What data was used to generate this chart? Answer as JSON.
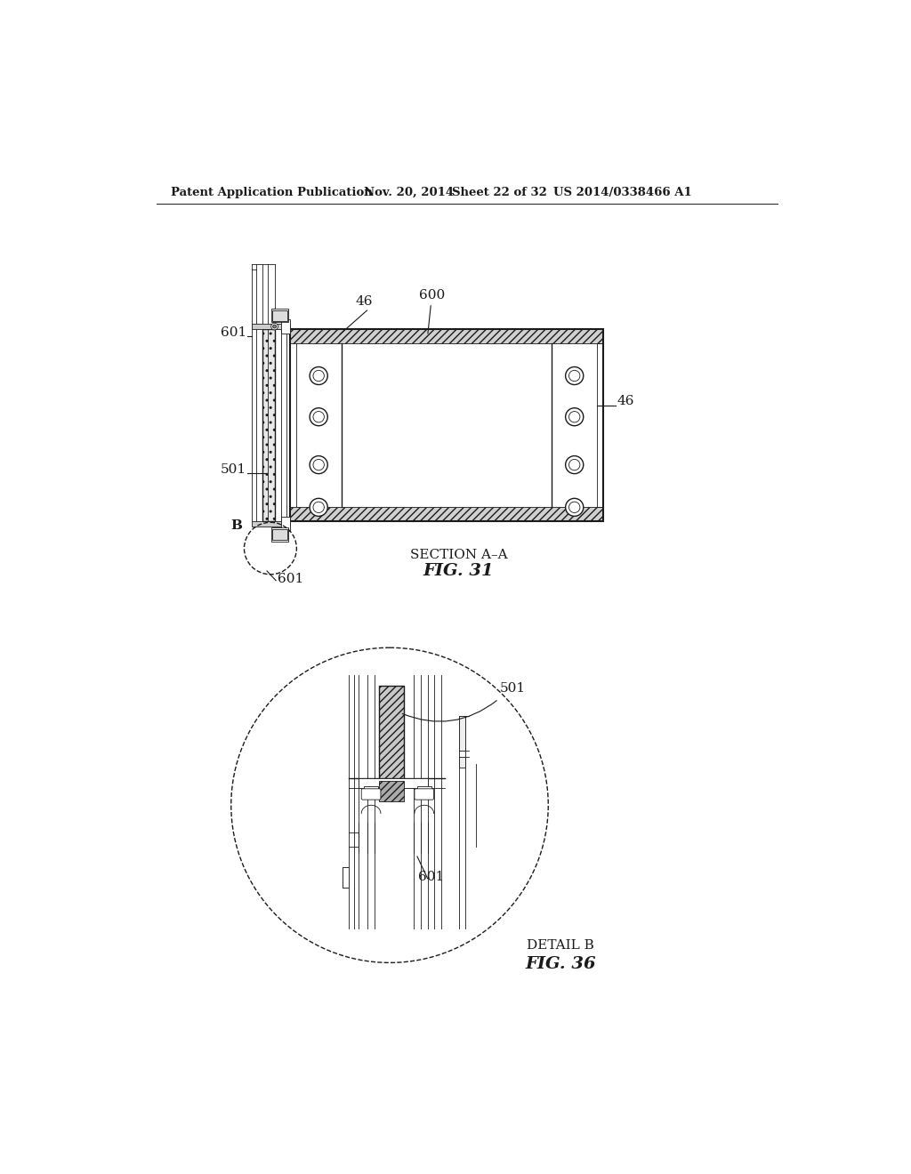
{
  "bg_color": "#ffffff",
  "header_text": "Patent Application Publication",
  "header_date": "Nov. 20, 2014",
  "header_sheet": "Sheet 22 of 32",
  "header_patent": "US 2014/0338466 A1",
  "fig31_caption_line1": "SECTION A–A",
  "fig31_caption_line2": "FIG. 31",
  "fig36_caption_line1": "DETAIL B",
  "fig36_caption_line2": "FIG. 36",
  "color": "#1a1a1a"
}
